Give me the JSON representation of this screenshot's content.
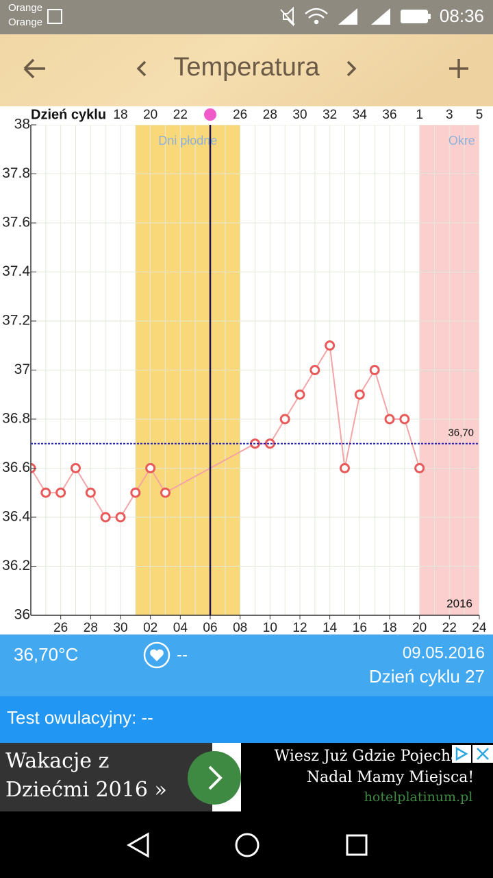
{
  "status_bar": {
    "carrier_1": "Orange",
    "carrier_2": "Orange",
    "time": "08:36"
  },
  "header": {
    "title": "Temperatura"
  },
  "chart_data": {
    "type": "line",
    "x_axis_label": "Dzień cyklu",
    "x": [
      0,
      1,
      2,
      3,
      4,
      5,
      6,
      7,
      8,
      9,
      15,
      16,
      17,
      18,
      19,
      20,
      21,
      22,
      23,
      24,
      25,
      26
    ],
    "series": [
      {
        "color": "#e85a5a",
        "values": [
          36.6,
          36.5,
          36.5,
          36.6,
          36.5,
          36.4,
          36.4,
          36.5,
          36.6,
          36.5,
          36.7,
          36.7,
          36.8,
          36.9,
          37.0,
          37.1,
          36.6,
          36.9,
          37.0,
          36.8,
          36.8,
          36.6
        ]
      }
    ],
    "xlim": [
      0,
      30
    ],
    "xticks": [
      {
        "value": 2,
        "label": "26"
      },
      {
        "value": 4,
        "label": "28"
      },
      {
        "value": 6,
        "label": "30"
      },
      {
        "value": 8,
        "label": "02"
      },
      {
        "value": 10,
        "label": "04"
      },
      {
        "value": 12,
        "label": "06"
      },
      {
        "value": 14,
        "label": "08"
      },
      {
        "value": 16,
        "label": "10"
      },
      {
        "value": 18,
        "label": "12"
      },
      {
        "value": 20,
        "label": "14"
      },
      {
        "value": 22,
        "label": "16"
      },
      {
        "value": 24,
        "label": "18"
      },
      {
        "value": 26,
        "label": "20"
      },
      {
        "value": 28,
        "label": "22"
      },
      {
        "value": 30,
        "label": "24"
      }
    ],
    "top_ticks": [
      {
        "value": 6,
        "label": "18"
      },
      {
        "value": 8,
        "label": "20"
      },
      {
        "value": 10,
        "label": "22"
      },
      {
        "value": 14,
        "label": "26"
      },
      {
        "value": 16,
        "label": "28"
      },
      {
        "value": 18,
        "label": "30"
      },
      {
        "value": 20,
        "label": "32"
      },
      {
        "value": 22,
        "label": "34"
      },
      {
        "value": 24,
        "label": "36"
      },
      {
        "value": 26,
        "label": "1"
      },
      {
        "value": 28,
        "label": "3"
      },
      {
        "value": 30,
        "label": "5"
      }
    ],
    "ylim": [
      36,
      38
    ],
    "yticks": [
      36,
      36.2,
      36.4,
      36.6,
      36.8,
      37,
      37.2,
      37.4,
      37.6,
      37.8,
      38
    ],
    "grid": true,
    "bands": [
      {
        "label": "Dni płodne",
        "start": 7,
        "end": 14,
        "color": "#f8d878"
      },
      {
        "label": "Okre",
        "start": 26,
        "end": 30,
        "color": "#fccfcf"
      }
    ],
    "reference_line": {
      "value": 36.7,
      "label": "36,70",
      "color": "#2424b0"
    },
    "today": 12,
    "year_label": "2016"
  },
  "info": {
    "temperature": "36,70°C",
    "heart_status": "--",
    "date": "09.05.2016",
    "cycle_day": "Dzień cyklu 27",
    "ovulation_test": "Test owulacyjny: --"
  },
  "ad": {
    "left_line_1": "Wakacje z",
    "left_line_2": "Dziećmi 2016 »",
    "right_line_1": "Wiesz Już Gdzie Pojecha",
    "right_line_2": "Nadal Mamy Miejsca!",
    "right_line_3": "hotelplatinum.pl"
  }
}
